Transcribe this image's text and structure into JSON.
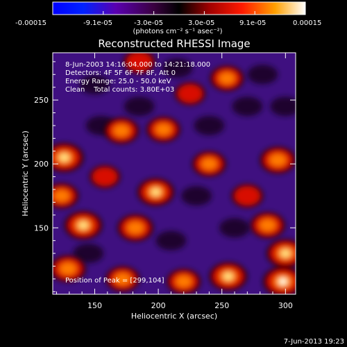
{
  "chart_data": {
    "type": "heatmap",
    "title": "Reconstructed RHESSI Image",
    "xlabel": "Heliocentric X (arcsec)",
    "ylabel": "Heliocentric Y (arcsec)",
    "xlim": [
      117,
      308
    ],
    "ylim": [
      98,
      287
    ],
    "x_ticks": [
      150,
      200,
      250,
      300
    ],
    "y_ticks": [
      150,
      200,
      250
    ],
    "colorbar": {
      "ticks": [
        "-0.00015",
        "-9.1e-05",
        "-3.0e-05",
        "3.0e-05",
        "9.1e-05",
        "0.00015"
      ],
      "range": [
        -0.00015,
        0.00015
      ],
      "unit_label": "(photons cm⁻² s⁻¹ asec⁻²)"
    },
    "annotations": [
      "8-Jun-2003 14:16:04.000 to 14:21:18.000",
      "Detectors: 4F 5F 6F 7F 8F, Att 0",
      "Energy Range: 25.0 - 50.0 keV",
      "Clean    Total counts: 3.80E+03"
    ],
    "peak_label": "Position of Peak = [299,104]",
    "peak": {
      "x": 299,
      "y": 104
    },
    "bright_regions": [
      {
        "x": 126,
        "y": 205,
        "level": 0.95
      },
      {
        "x": 124,
        "y": 175,
        "level": 0.7
      },
      {
        "x": 141,
        "y": 152,
        "level": 0.9
      },
      {
        "x": 129,
        "y": 118,
        "level": 0.8
      },
      {
        "x": 298,
        "y": 108,
        "level": 1.0
      },
      {
        "x": 171,
        "y": 226,
        "level": 0.75
      },
      {
        "x": 198,
        "y": 178,
        "level": 0.85
      },
      {
        "x": 204,
        "y": 227,
        "level": 0.7
      },
      {
        "x": 182,
        "y": 150,
        "level": 0.8
      },
      {
        "x": 240,
        "y": 200,
        "level": 0.7
      },
      {
        "x": 294,
        "y": 203,
        "level": 0.8
      },
      {
        "x": 286,
        "y": 152,
        "level": 0.75
      },
      {
        "x": 255,
        "y": 112,
        "level": 0.9
      },
      {
        "x": 220,
        "y": 108,
        "level": 0.7
      },
      {
        "x": 172,
        "y": 110,
        "level": 0.7
      },
      {
        "x": 254,
        "y": 267,
        "level": 0.7
      },
      {
        "x": 185,
        "y": 280,
        "level": 0.6
      },
      {
        "x": 225,
        "y": 255,
        "level": 0.55
      },
      {
        "x": 270,
        "y": 175,
        "level": 0.6
      },
      {
        "x": 300,
        "y": 130,
        "level": 0.9
      },
      {
        "x": 158,
        "y": 190,
        "level": 0.55
      }
    ],
    "dark_regions": [
      {
        "x": 150,
        "y": 262
      },
      {
        "x": 215,
        "y": 275
      },
      {
        "x": 282,
        "y": 270
      },
      {
        "x": 270,
        "y": 245
      },
      {
        "x": 230,
        "y": 175
      },
      {
        "x": 155,
        "y": 230
      },
      {
        "x": 260,
        "y": 150
      },
      {
        "x": 210,
        "y": 140
      },
      {
        "x": 145,
        "y": 130
      },
      {
        "x": 300,
        "y": 245
      },
      {
        "x": 240,
        "y": 230
      },
      {
        "x": 185,
        "y": 245
      }
    ]
  },
  "footer": {
    "date": "7-Jun-2013 19:23"
  }
}
